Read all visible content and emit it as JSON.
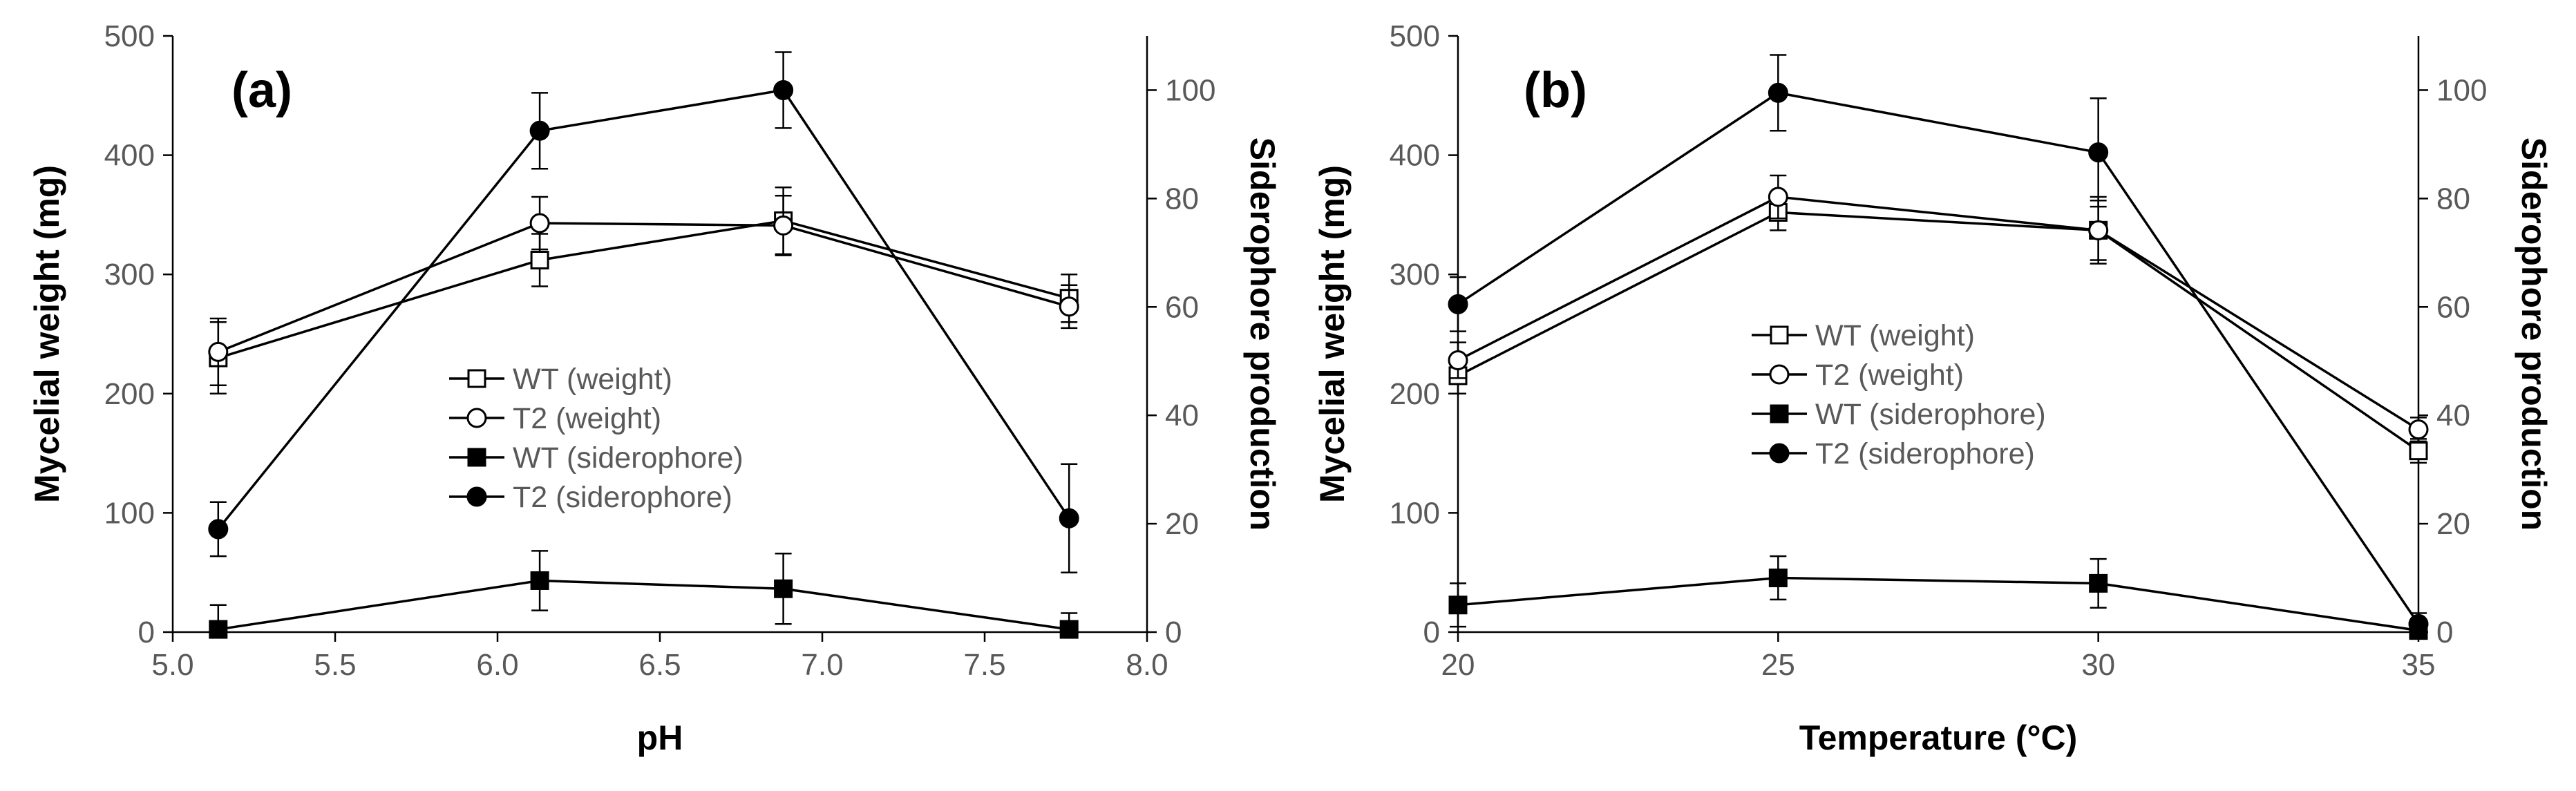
{
  "chart_data": [
    {
      "panel": "(a)",
      "type": "line",
      "xlabel": "pH",
      "ylabel_left": "Mycelial weight (mg)",
      "ylabel_right": "Siderophore production",
      "xlim": [
        5.0,
        8.0
      ],
      "ylim_left": [
        0,
        500
      ],
      "ylim_right": [
        0,
        110
      ],
      "xticks": [
        "5.0",
        "5.5",
        "6.0",
        "6.5",
        "7.0",
        "7.5",
        "8.0"
      ],
      "yticks_left": [
        "0",
        "100",
        "200",
        "300",
        "400",
        "500"
      ],
      "yticks_right": [
        "0",
        "20",
        "40",
        "60",
        "80",
        "100"
      ],
      "legend_position": "center",
      "series": [
        {
          "name": "WT (weight)",
          "axis": "left",
          "marker": "square-open",
          "x": [
            5.14,
            6.13,
            6.88,
            7.76
          ],
          "y": [
            230,
            312,
            345,
            280
          ],
          "err": [
            30,
            22,
            28,
            20
          ]
        },
        {
          "name": "T2 (weight)",
          "axis": "left",
          "marker": "circle-open",
          "x": [
            5.14,
            6.13,
            6.88,
            7.76
          ],
          "y": [
            235,
            343,
            341,
            273
          ],
          "err": [
            28,
            22,
            25,
            18
          ]
        },
        {
          "name": "WT (siderophore)",
          "axis": "right",
          "marker": "square-filled",
          "x": [
            5.14,
            6.13,
            6.88,
            7.76
          ],
          "y": [
            0.5,
            9.5,
            8,
            0.5
          ],
          "err": [
            4.5,
            5.5,
            6.5,
            3
          ]
        },
        {
          "name": "T2 (siderophore)",
          "axis": "right",
          "marker": "circle-filled",
          "x": [
            5.14,
            6.13,
            6.88,
            7.76
          ],
          "y": [
            19,
            92.5,
            100,
            21
          ],
          "err": [
            5,
            7,
            7,
            10
          ]
        }
      ]
    },
    {
      "panel": "(b)",
      "type": "line",
      "xlabel": "Temperature (°C)",
      "ylabel_left": "Mycelial weight (mg)",
      "ylabel_right": "Siderophore production",
      "xlim": [
        20,
        35
      ],
      "ylim_left": [
        0,
        500
      ],
      "ylim_right": [
        0,
        110
      ],
      "xticks": [
        "20",
        "25",
        "30",
        "35"
      ],
      "yticks_left": [
        "0",
        "100",
        "200",
        "300",
        "400",
        "500"
      ],
      "yticks_right": [
        "0",
        "20",
        "40",
        "60",
        "80",
        "100"
      ],
      "legend_position": "center-right",
      "series": [
        {
          "name": "WT (weight)",
          "axis": "left",
          "marker": "square-open",
          "x": [
            20,
            25,
            30,
            35
          ],
          "y": [
            215,
            352,
            337,
            152
          ],
          "err": [
            15,
            15,
            25,
            10
          ]
        },
        {
          "name": "T2 (weight)",
          "axis": "left",
          "marker": "circle-open",
          "x": [
            20,
            25,
            30,
            35
          ],
          "y": [
            228,
            365,
            337,
            170
          ],
          "err": [
            15,
            18,
            28,
            10
          ]
        },
        {
          "name": "WT (siderophore)",
          "axis": "right",
          "marker": "square-filled",
          "x": [
            20,
            25,
            30,
            35
          ],
          "y": [
            5,
            10,
            9,
            0.3
          ],
          "err": [
            4,
            4,
            4.5,
            0.5
          ]
        },
        {
          "name": "T2 (siderophore)",
          "axis": "right",
          "marker": "circle-filled",
          "x": [
            20,
            25,
            30,
            35
          ],
          "y": [
            60.5,
            99.5,
            88.5,
            1.5
          ],
          "err": [
            5,
            7,
            10,
            2
          ]
        }
      ]
    }
  ]
}
